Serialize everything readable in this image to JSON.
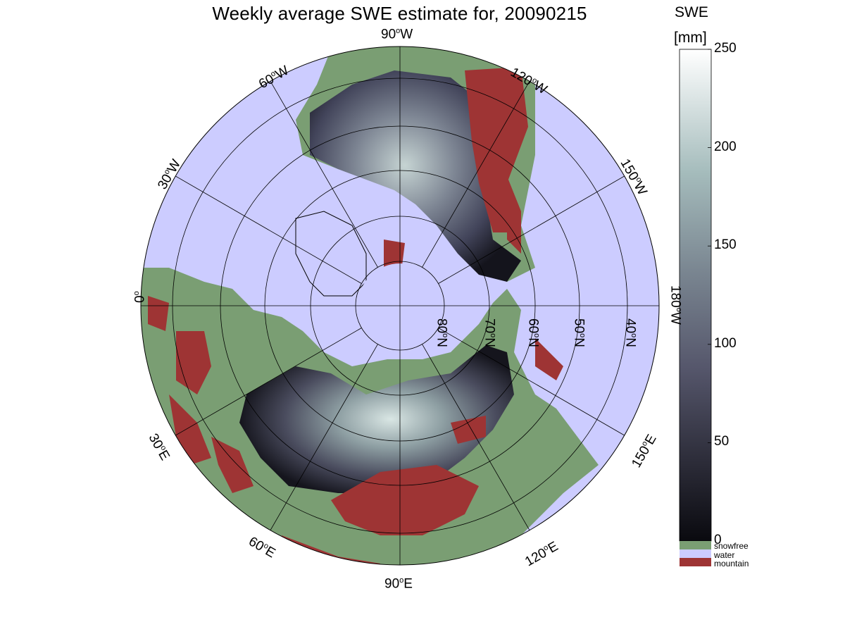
{
  "title": "Weekly average SWE estimate for, 20090215",
  "longitude_labels": [
    {
      "text": "90",
      "suffix": "W"
    },
    {
      "text": "120",
      "suffix": "W"
    },
    {
      "text": "150",
      "suffix": "W"
    },
    {
      "text": "180",
      "suffix": "W"
    },
    {
      "text": "150",
      "suffix": "E"
    },
    {
      "text": "120",
      "suffix": "E"
    },
    {
      "text": "90",
      "suffix": "E"
    },
    {
      "text": "60",
      "suffix": "E"
    },
    {
      "text": "30",
      "suffix": "E"
    },
    {
      "text": "0",
      "suffix": ""
    },
    {
      "text": "30",
      "suffix": "W"
    },
    {
      "text": "60",
      "suffix": "W"
    }
  ],
  "latitude_labels": [
    {
      "text": "80",
      "suffix": "N"
    },
    {
      "text": "70",
      "suffix": "N"
    },
    {
      "text": "60",
      "suffix": "N"
    },
    {
      "text": "50",
      "suffix": "N"
    },
    {
      "text": "40",
      "suffix": "N"
    }
  ],
  "colorbar": {
    "title_line1": "SWE",
    "title_line2": "[mm]",
    "ticks": [
      "0",
      "50",
      "100",
      "150",
      "200",
      "250"
    ],
    "range": [
      0,
      250
    ],
    "categories": [
      {
        "label": "snowfree",
        "color": "#7a9e73"
      },
      {
        "label": "water",
        "color": "#ccccff"
      },
      {
        "label": "mountain",
        "color": "#9e3434"
      }
    ]
  },
  "colors": {
    "water": "#ccccff",
    "snowfree": "#7a9e73",
    "mountain": "#9e3434",
    "swe_low": "#101018",
    "swe_high": "#f5fafa"
  }
}
